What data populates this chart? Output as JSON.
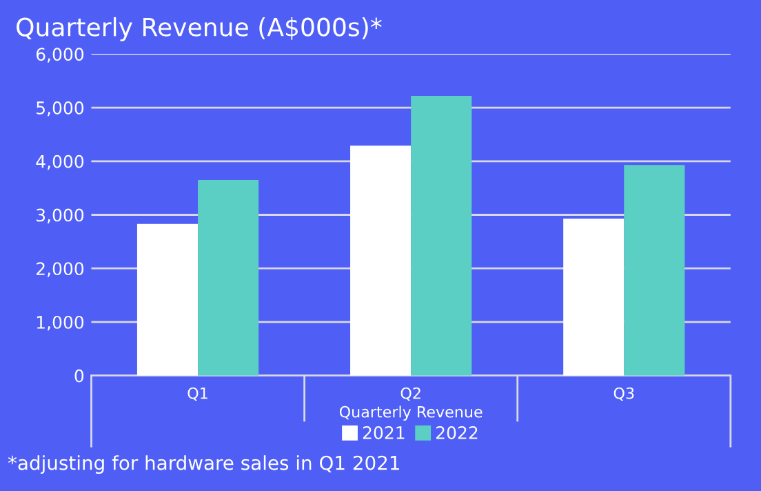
{
  "chart_data": {
    "type": "bar",
    "title": "Quarterly Revenue (A$000s)*",
    "xlabel": "Quarterly Revenue",
    "categories": [
      "Q1",
      "Q2",
      "Q3"
    ],
    "series": [
      {
        "name": "2021",
        "color": "#ffffff",
        "values": [
          2830,
          4290,
          2930
        ]
      },
      {
        "name": "2022",
        "color": "#5ccfc4",
        "values": [
          3650,
          5220,
          3930
        ]
      }
    ],
    "ylim": [
      0,
      6000
    ],
    "yticks": [
      {
        "value": 0,
        "label": "0"
      },
      {
        "value": 1000,
        "label": "1,000"
      },
      {
        "value": 2000,
        "label": "2,000"
      },
      {
        "value": 3000,
        "label": "3,000"
      },
      {
        "value": 4000,
        "label": "4,000"
      },
      {
        "value": 5000,
        "label": "5,000"
      },
      {
        "value": 6000,
        "label": "6,000"
      }
    ],
    "grid": "y",
    "legend": "bottom",
    "annotations": [
      "*adjusting for hardware sales in Q1 2021"
    ]
  }
}
